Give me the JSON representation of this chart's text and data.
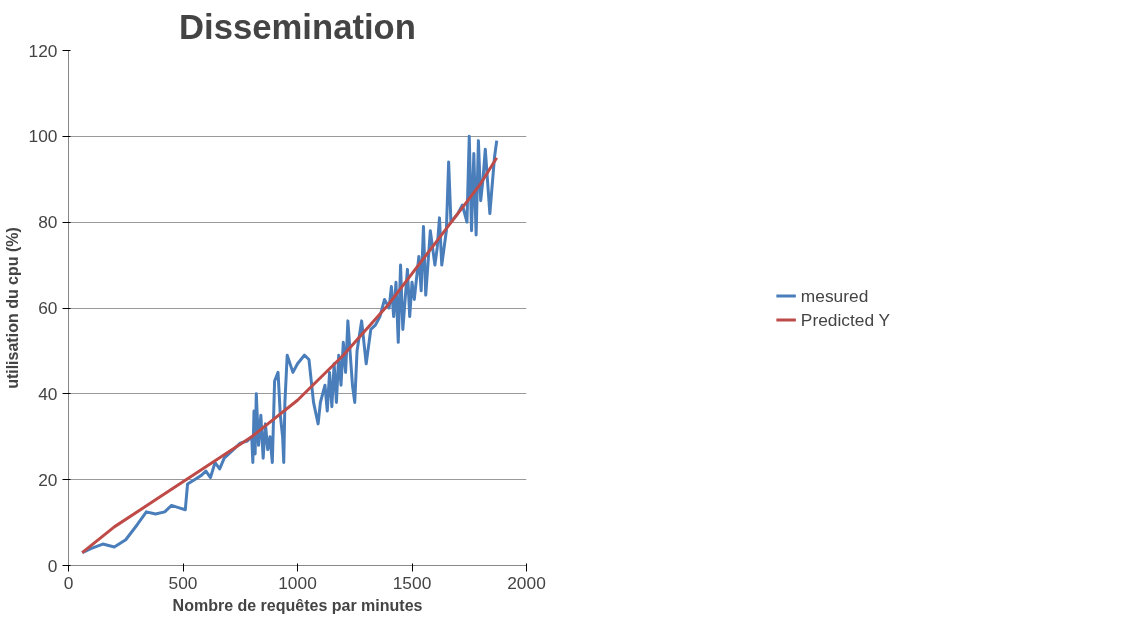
{
  "chart_data": {
    "type": "line",
    "title": "Dissemination",
    "xlabel": "Nombre de requêtes par minutes",
    "ylabel": "utilisation du cpu (%)",
    "xlim": [
      0,
      2000
    ],
    "xticks": [
      0,
      500,
      1000,
      1500,
      2000
    ],
    "ylim": [
      0,
      120
    ],
    "yticks": [
      0,
      20,
      40,
      60,
      80,
      100,
      120
    ],
    "grid": "y",
    "legend": "right",
    "series": [
      {
        "name": "mesured",
        "color": "#4a7ebb",
        "x": [
          60,
          100,
          150,
          200,
          250,
          300,
          340,
          380,
          420,
          450,
          480,
          510,
          520,
          550,
          580,
          600,
          620,
          640,
          660,
          680,
          700,
          720,
          750,
          780,
          800,
          805,
          810,
          815,
          820,
          830,
          840,
          850,
          860,
          870,
          880,
          890,
          900,
          915,
          925,
          935,
          940,
          945,
          955,
          980,
          1000,
          1030,
          1050,
          1070,
          1090,
          1100,
          1120,
          1130,
          1140,
          1150,
          1160,
          1170,
          1180,
          1190,
          1200,
          1210,
          1220,
          1240,
          1250,
          1260,
          1280,
          1300,
          1320,
          1340,
          1360,
          1380,
          1400,
          1410,
          1420,
          1430,
          1440,
          1450,
          1460,
          1480,
          1490,
          1500,
          1510,
          1530,
          1540,
          1550,
          1560,
          1580,
          1600,
          1610,
          1620,
          1630,
          1650,
          1660,
          1670,
          1700,
          1720,
          1740,
          1750,
          1760,
          1770,
          1780,
          1790,
          1800,
          1810,
          1820,
          1840,
          1860,
          1870
        ],
        "values": [
          3,
          4,
          5,
          4.3,
          6,
          9.5,
          12.5,
          12,
          12.5,
          14,
          13.5,
          13,
          19,
          20,
          21,
          22,
          20.5,
          24,
          22.5,
          25,
          26,
          27,
          28.5,
          29,
          30,
          24,
          36,
          26,
          40,
          28,
          35,
          25,
          33,
          27,
          30,
          24,
          43,
          45,
          35,
          30,
          24,
          38,
          49,
          45,
          47,
          49,
          48,
          38,
          33,
          38,
          42,
          36,
          45,
          37,
          47,
          38,
          49,
          42,
          52,
          45,
          57,
          42,
          38,
          50,
          57,
          47,
          55,
          56,
          58,
          62,
          60,
          65,
          58,
          66,
          52,
          70,
          55,
          69,
          58,
          66,
          62,
          72,
          64,
          79,
          63,
          78,
          70,
          74,
          81,
          70,
          78,
          94,
          80,
          82,
          84,
          80,
          100,
          78,
          96,
          77,
          99,
          85,
          90,
          97,
          82,
          95,
          99
        ]
      },
      {
        "name": "Predicted Y",
        "color": "#be4b48",
        "x": [
          60,
          200,
          400,
          600,
          800,
          1000,
          1200,
          1400,
          1600,
          1800,
          1870
        ],
        "values": [
          3,
          9,
          16,
          23,
          30,
          38.5,
          49,
          61,
          75,
          89,
          95
        ]
      }
    ]
  }
}
